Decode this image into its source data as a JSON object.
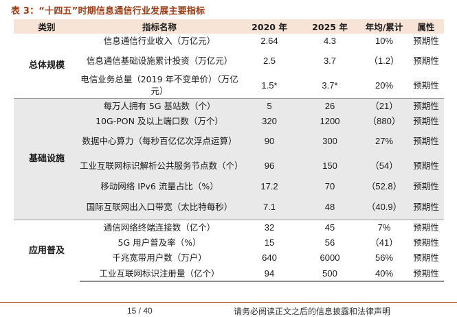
{
  "caption": "表 3：“十四五”时期信息通信行业发展主要指标",
  "headers": [
    "类别",
    "指标名称",
    "2020 年",
    "2025 年",
    "年均/累计",
    "属性"
  ],
  "groups": [
    {
      "category": "总体规模",
      "rows": [
        {
          "name": "信息通信行业收入（万亿元）",
          "v2020": "2.64",
          "v2025": "4.3",
          "avg": "10%",
          "attr": "预期性"
        },
        {
          "name": "信息通信基础设施累计投资（万亿元）",
          "v2020": "2.5",
          "v2025": "3.7",
          "avg": "（1.2）",
          "attr": "预期性"
        },
        {
          "name": "电信业务总量（2019 年不变单价）（万亿元）",
          "v2020": "1.5*",
          "v2025": "3.7*",
          "avg": "20%",
          "attr": "预期性"
        }
      ]
    },
    {
      "category": "基础设施",
      "rows": [
        {
          "name": "每万人拥有 5G 基站数（个）",
          "v2020": "5",
          "v2025": "26",
          "avg": "（21）",
          "attr": "预期性"
        },
        {
          "name": "10G-PON 及以上端口数（万个）",
          "v2020": "320",
          "v2025": "1200",
          "avg": "（880）",
          "attr": "预期性"
        },
        {
          "name": "数据中心算力（每秒百亿亿次浮点运算）",
          "v2020": "90",
          "v2025": "300",
          "avg": "27%",
          "attr": "预期性"
        },
        {
          "name": "工业互联网标识解析公共服务节点数（个）",
          "v2020": "96",
          "v2025": "150",
          "avg": "（54）",
          "attr": "预期性"
        },
        {
          "name": "移动网络 IPv6 流量占比（%）",
          "v2020": "17.2",
          "v2025": "70",
          "avg": "（52.8）",
          "attr": "预期性"
        },
        {
          "name": "国际互联网出入口带宽（太比特每秒）",
          "v2020": "7.1",
          "v2025": "48",
          "avg": "（40.9）",
          "attr": "预期性"
        }
      ]
    },
    {
      "category": "应用普及",
      "rows": [
        {
          "name": "通信网络终端连接数（亿个）",
          "v2020": "32",
          "v2025": "45",
          "avg": "7%",
          "attr": "预期性"
        },
        {
          "name": "5G 用户普及率（%）",
          "v2020": "15",
          "v2025": "56",
          "avg": "（41）",
          "attr": "预期性"
        },
        {
          "name": "千兆宽带用户数（万户）",
          "v2020": "640",
          "v2025": "6000",
          "avg": "56%",
          "attr": "预期性"
        },
        {
          "name": "工业互联网标识注册量（亿个）",
          "v2020": "94",
          "v2025": "500",
          "avg": "40%",
          "attr": "预期性"
        }
      ]
    }
  ],
  "footer": {
    "page": "15 / 40",
    "disclaimer": "请务必阅读正文之后的信息披露和法律声明"
  }
}
